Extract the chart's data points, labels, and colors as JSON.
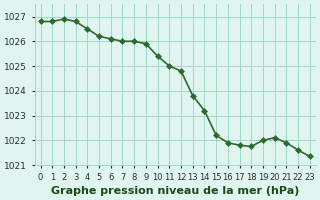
{
  "x": [
    0,
    1,
    2,
    3,
    4,
    5,
    6,
    7,
    8,
    9,
    10,
    11,
    12,
    13,
    14,
    15,
    16,
    17,
    18,
    19,
    20,
    21,
    22,
    23
  ],
  "y": [
    1026.8,
    1026.8,
    1026.9,
    1026.8,
    1026.5,
    1026.2,
    1026.1,
    1026.0,
    1026.0,
    1025.9,
    1025.4,
    1025.0,
    1024.8,
    1023.8,
    1023.2,
    1022.2,
    1021.9,
    1021.8,
    1021.75,
    1022.0,
    1022.1,
    1021.9,
    1021.6,
    1021.35
  ],
  "line_color": "#2d6a2d",
  "marker_color": "#2d6a2d",
  "bg_color": "#e0f5f0",
  "grid_color": "#a0d8c8",
  "xlabel": "Graphe pression niveau de la mer (hPa)",
  "ylim_min": 1021.0,
  "ylim_max": 1027.5,
  "xlim_min": -0.5,
  "xlim_max": 23.5,
  "yticks": [
    1021,
    1022,
    1023,
    1024,
    1025,
    1026,
    1027
  ],
  "xtick_labels": [
    "0",
    "1",
    "2",
    "3",
    "4",
    "5",
    "6",
    "7",
    "8",
    "9",
    "10",
    "11",
    "12",
    "13",
    "14",
    "15",
    "16",
    "17",
    "18",
    "19",
    "20",
    "21",
    "22",
    "23"
  ],
  "xlabel_fontsize": 8,
  "tick_fontsize": 6.5,
  "line_width": 1.2,
  "marker_size": 3
}
